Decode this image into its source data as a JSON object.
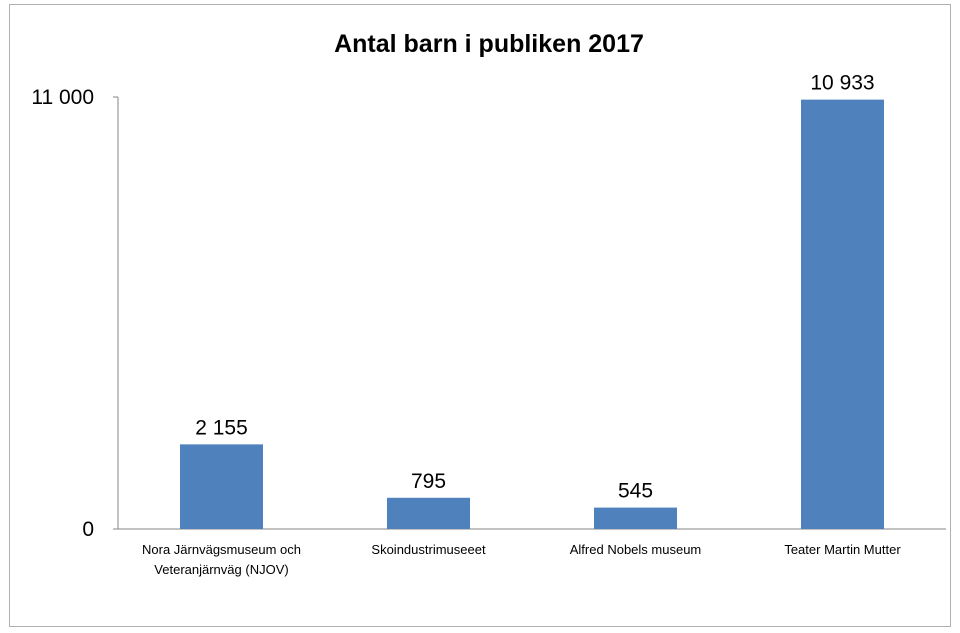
{
  "chart_data": {
    "type": "bar",
    "title": "Antal barn i publiken 2017",
    "categories": [
      [
        "Nora Järnvägsmuseum och",
        "Veteranjärnväg (NJOV)"
      ],
      [
        "Skoindustrimuseeet"
      ],
      [
        "Alfred Nobels museum"
      ],
      [
        "Teater Martin Mutter"
      ]
    ],
    "values": [
      2155,
      795,
      545,
      10933
    ],
    "data_labels": [
      "2 155",
      "795",
      "545",
      "10 933"
    ],
    "ylim": [
      0,
      11000
    ],
    "yticks": [
      {
        "value": 0,
        "label": "0"
      },
      {
        "value": 11000,
        "label": "11 000"
      }
    ],
    "xlabel": "",
    "ylabel": "",
    "grid": false,
    "bar_color": "#4f81bd"
  }
}
